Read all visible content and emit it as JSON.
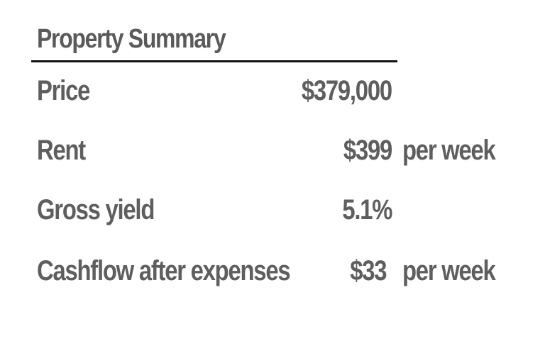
{
  "summary": {
    "title": "Property Summary",
    "rows": [
      {
        "label": "Price",
        "value": "$379,000",
        "unit": ""
      },
      {
        "label": "Rent",
        "value": "$399",
        "unit": "per week"
      },
      {
        "label": "Gross yield",
        "value": "5.1%",
        "unit": ""
      },
      {
        "label": "Cashflow after expenses",
        "value": "$33",
        "unit": "per week"
      }
    ]
  }
}
